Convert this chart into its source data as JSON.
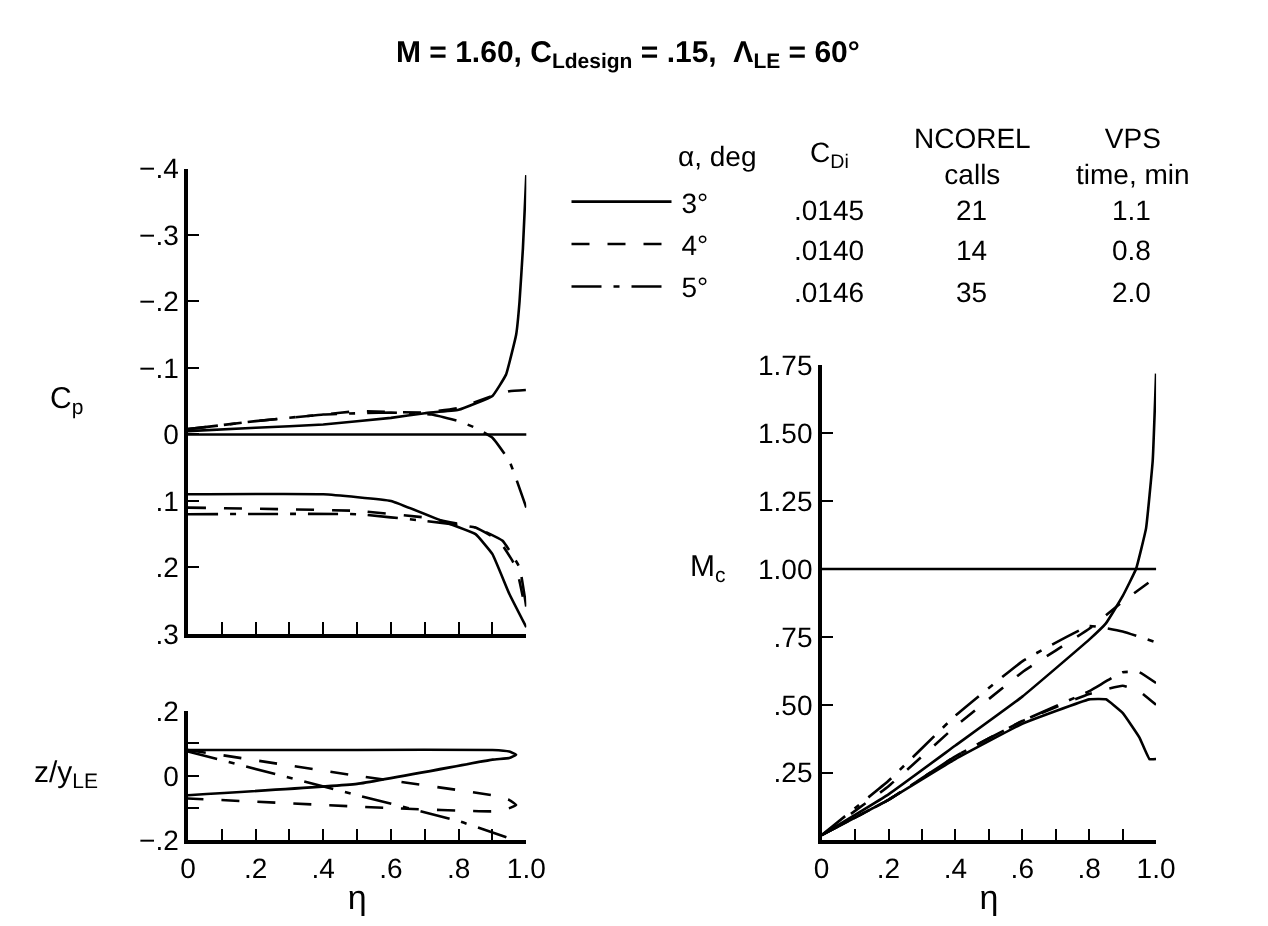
{
  "chart_data": [
    {
      "type": "line",
      "title": "M = 1.60, C$_{L}$$_{design}$ = .15,  Λ$_{LE}$ = 60°",
      "ylabel": "C$_{p}$",
      "legend": "right",
      "tick_labels": "y",
      "xlim": [
        0,
        1
      ],
      "xticks": [
        {
          "value": 0,
          "label": null
        },
        {
          "value": 0.1,
          "label": null
        },
        {
          "value": 0.2,
          "label": null
        },
        {
          "value": 0.3,
          "label": null
        },
        {
          "value": 0.4,
          "label": null
        },
        {
          "value": 0.5,
          "label": null
        },
        {
          "value": 0.6,
          "label": null
        },
        {
          "value": 0.7,
          "label": null
        },
        {
          "value": 0.8,
          "label": null
        },
        {
          "value": 0.9,
          "label": null
        },
        {
          "value": 1.0,
          "label": null
        }
      ],
      "ylim": [
        0.3,
        -0.4
      ],
      "yticks": [
        {
          "value": -0.4,
          "label": "−.4"
        },
        {
          "value": -0.3,
          "label": "−.3"
        },
        {
          "value": -0.2,
          "label": "−.2"
        },
        {
          "value": -0.1,
          "label": "−.1"
        },
        {
          "value": 0,
          "label": "0"
        },
        {
          "value": 0.1,
          "label": ".1"
        },
        {
          "value": 0.2,
          "label": ".2"
        },
        {
          "value": 0.3,
          "label": ".3"
        }
      ],
      "ref_lines": [
        {
          "axis": "y",
          "value": 0,
          "label": null
        }
      ],
      "annotations": [
        "α, deg",
        "C$_{D}$$_{i}$",
        "NCOREL calls",
        "VPS time, min",
        ".0145",
        "21",
        "1.1",
        ".0140",
        "14",
        "0.8",
        ".0146",
        "35",
        "2.0"
      ],
      "series": [
        {
          "name": "3°",
          "color": "#000000",
          "line_style": "solid",
          "x": [
            0,
            0.2,
            0.4,
            0.6,
            0.7,
            0.8,
            0.9,
            0.94,
            0.97,
            0.98,
            0.99,
            1.0
          ],
          "values": [
            -0.005,
            -0.01,
            -0.015,
            -0.025,
            -0.032,
            -0.037,
            -0.058,
            -0.09,
            -0.15,
            -0.2,
            -0.28,
            -0.39
          ]
        },
        {
          "name": "4°",
          "color": "#000000",
          "line_style": "dashed",
          "x": [
            0,
            0.2,
            0.4,
            0.5,
            0.7,
            0.8,
            0.9,
            0.95,
            1.0
          ],
          "values": [
            -0.008,
            -0.02,
            -0.03,
            -0.035,
            -0.033,
            -0.04,
            -0.058,
            -0.065,
            -0.067
          ]
        },
        {
          "name": "5°",
          "color": "#000000",
          "line_style": "dashdot",
          "x": [
            0,
            0.2,
            0.4,
            0.6,
            0.72,
            0.8,
            0.85,
            0.9,
            0.95,
            1.0
          ],
          "values": [
            -0.008,
            -0.02,
            -0.03,
            -0.033,
            -0.03,
            -0.02,
            -0.01,
            0.005,
            0.04,
            0.11
          ]
        },
        {
          "color": "#000000",
          "line_style": "solid",
          "x": [
            0,
            0.4,
            0.6,
            0.75,
            0.85,
            0.9,
            0.95,
            1.0
          ],
          "values": [
            0.09,
            0.09,
            0.1,
            0.13,
            0.15,
            0.18,
            0.24,
            0.29
          ]
        },
        {
          "color": "#000000",
          "line_style": "dashed",
          "x": [
            0,
            0.5,
            0.7,
            0.85,
            0.92,
            0.97,
            1.0
          ],
          "values": [
            0.11,
            0.115,
            0.125,
            0.14,
            0.16,
            0.2,
            0.27
          ]
        },
        {
          "color": "#000000",
          "line_style": "dashdot",
          "x": [
            0,
            0.5,
            0.7,
            0.85,
            0.93,
            0.98,
            1.0
          ],
          "values": [
            0.12,
            0.12,
            0.13,
            0.14,
            0.16,
            0.2,
            0.26
          ]
        }
      ]
    },
    {
      "type": "line",
      "ylabel": "z/y$_{LE}$",
      "xlabel": "η",
      "xlim": [
        0,
        1
      ],
      "xticks": [
        0,
        {
          "value": 0.1,
          "label": null
        },
        {
          "value": 0.2,
          "label": ".2"
        },
        {
          "value": 0.3,
          "label": null
        },
        {
          "value": 0.4,
          "label": ".4"
        },
        {
          "value": 0.5,
          "label": null
        },
        {
          "value": 0.6,
          "label": ".6"
        },
        {
          "value": 0.7,
          "label": null
        },
        {
          "value": 0.8,
          "label": ".8"
        },
        {
          "value": 0.9,
          "label": null
        },
        {
          "value": 1.0,
          "label": "1.0"
        }
      ],
      "ylim": [
        -0.2,
        0.2
      ],
      "yticks": [
        {
          "value": -0.2,
          "label": "−.2"
        },
        {
          "value": -0.1,
          "label": null
        },
        0,
        {
          "value": 0.1,
          "label": null
        },
        {
          "value": 0.2,
          "label": ".2"
        }
      ],
      "series": [
        {
          "color": "#000000",
          "line_style": "solid",
          "x": [
            0,
            0.5,
            0.9,
            0.95,
            0.97,
            0.95,
            0.9,
            0.5,
            0
          ],
          "values": [
            0.08,
            0.08,
            0.08,
            0.075,
            0.065,
            0.055,
            0.05,
            -0.025,
            -0.06
          ]
        },
        {
          "color": "#000000",
          "line_style": "dashed",
          "x": [
            0,
            0.5,
            0.9,
            0.95,
            0.97,
            0.95,
            0.9,
            0.6,
            0
          ],
          "values": [
            0.08,
            0.0,
            -0.06,
            -0.075,
            -0.09,
            -0.1,
            -0.11,
            -0.1,
            -0.07
          ]
        },
        {
          "color": "#000000",
          "line_style": "dashdot",
          "x": [
            0,
            0.5,
            0.8,
            0.97
          ],
          "values": [
            0.075,
            -0.06,
            -0.14,
            -0.2
          ]
        }
      ]
    },
    {
      "type": "line",
      "ylabel": "M$_{c}$",
      "xlabel": "η",
      "xlim": [
        0,
        1
      ],
      "xticks": [
        0,
        {
          "value": 0.1,
          "label": null
        },
        {
          "value": 0.2,
          "label": ".2"
        },
        {
          "value": 0.3,
          "label": null
        },
        {
          "value": 0.4,
          "label": ".4"
        },
        {
          "value": 0.5,
          "label": null
        },
        {
          "value": 0.6,
          "label": ".6"
        },
        {
          "value": 0.7,
          "label": null
        },
        {
          "value": 0.8,
          "label": ".8"
        },
        {
          "value": 0.9,
          "label": null
        },
        {
          "value": 1.0,
          "label": "1.0"
        }
      ],
      "ylim": [
        0,
        1.75
      ],
      "yticks": [
        {
          "value": 0,
          "label": null
        },
        {
          "value": 0.25,
          "label": ".25"
        },
        {
          "value": 0.5,
          "label": ".50"
        },
        {
          "value": 0.75,
          "label": ".75"
        },
        {
          "value": 1.0,
          "label": "1.00"
        },
        {
          "value": 1.25,
          "label": "1.25"
        },
        {
          "value": 1.5,
          "label": "1.50"
        },
        {
          "value": 1.75,
          "label": "1.75"
        }
      ],
      "ref_lines": [
        {
          "axis": "y",
          "value": 1.0,
          "label": null
        }
      ],
      "series": [
        {
          "color": "#000000",
          "line_style": "solid",
          "x": [
            0,
            0.2,
            0.4,
            0.6,
            0.8,
            0.85,
            0.9,
            0.94,
            0.97,
            0.99,
            1.0
          ],
          "values": [
            0.02,
            0.17,
            0.35,
            0.53,
            0.74,
            0.8,
            0.9,
            1.0,
            1.15,
            1.4,
            1.72
          ]
        },
        {
          "color": "#000000",
          "line_style": "dashed",
          "x": [
            0,
            0.2,
            0.4,
            0.6,
            0.8,
            0.9,
            1.0
          ],
          "values": [
            0.02,
            0.2,
            0.42,
            0.62,
            0.78,
            0.88,
            0.97
          ]
        },
        {
          "color": "#000000",
          "line_style": "dashdot",
          "x": [
            0,
            0.2,
            0.4,
            0.6,
            0.8,
            0.9,
            1.0
          ],
          "values": [
            0.02,
            0.22,
            0.46,
            0.66,
            0.79,
            0.77,
            0.73
          ]
        },
        {
          "color": "#000000",
          "line_style": "solid",
          "x": [
            0,
            0.2,
            0.4,
            0.6,
            0.8,
            0.85,
            0.9,
            0.95,
            0.98,
            1.0
          ],
          "values": [
            0.02,
            0.15,
            0.3,
            0.43,
            0.52,
            0.52,
            0.47,
            0.38,
            0.3,
            0.3
          ]
        },
        {
          "color": "#000000",
          "line_style": "dashed",
          "x": [
            0,
            0.2,
            0.4,
            0.6,
            0.8,
            0.9,
            0.95,
            1.0
          ],
          "values": [
            0.02,
            0.15,
            0.31,
            0.44,
            0.54,
            0.57,
            0.55,
            0.5
          ]
        },
        {
          "color": "#000000",
          "line_style": "dashdot",
          "x": [
            0,
            0.2,
            0.4,
            0.6,
            0.8,
            0.9,
            0.95,
            1.0
          ],
          "values": [
            0.02,
            0.15,
            0.31,
            0.44,
            0.55,
            0.62,
            0.62,
            0.58
          ]
        }
      ]
    }
  ]
}
